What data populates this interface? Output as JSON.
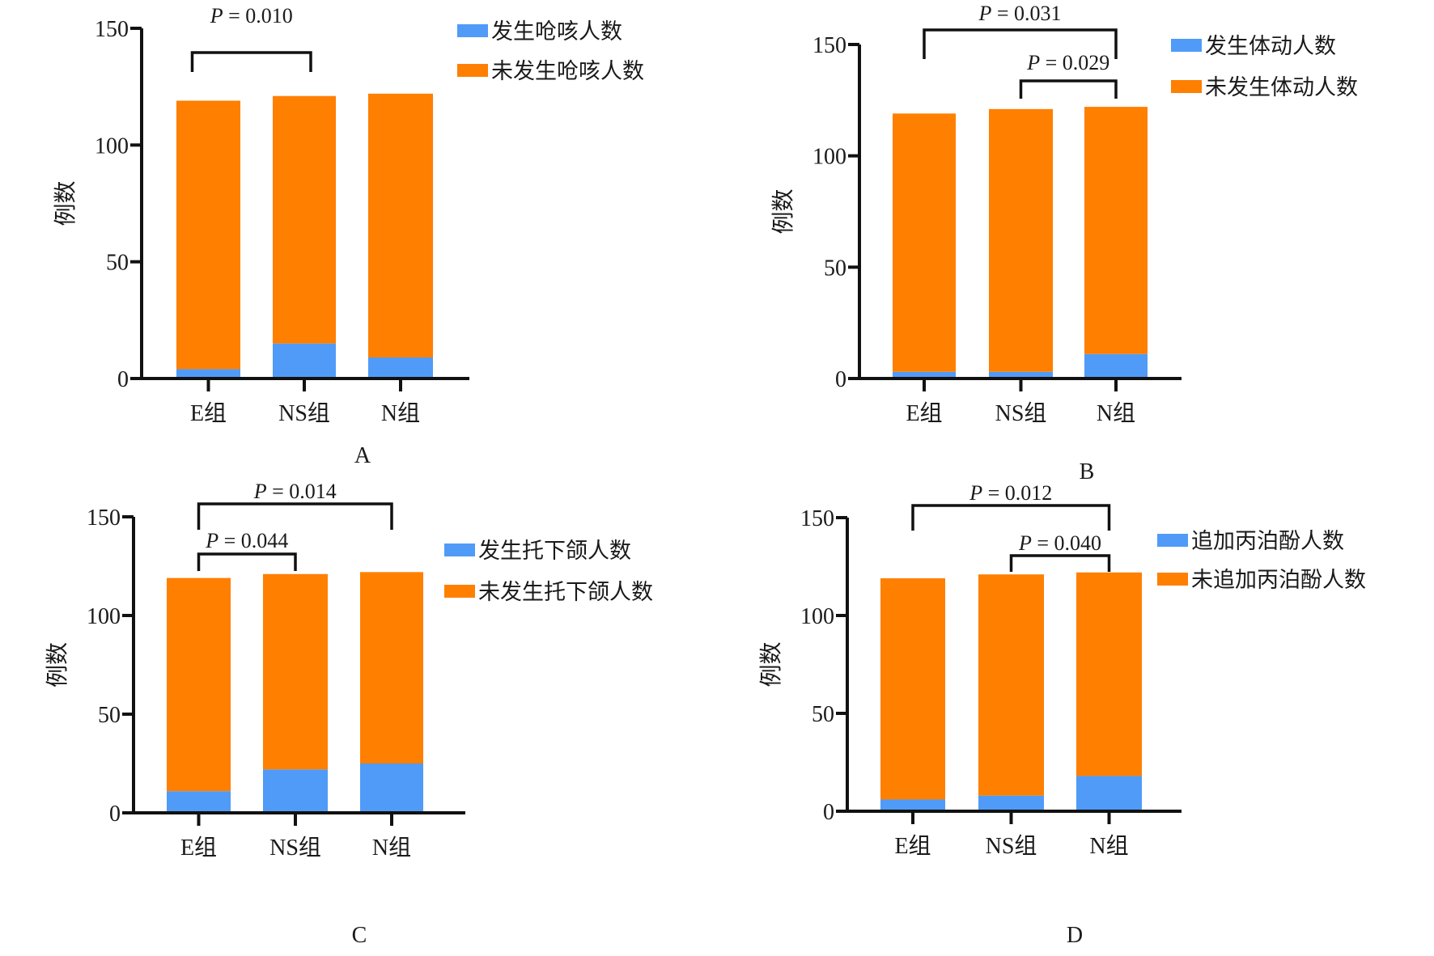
{
  "colors": {
    "occurred": "#4f9bf7",
    "not_occurred": "#ff7f00",
    "axis": "#111111"
  },
  "chart_data": [
    {
      "type": "bar",
      "stacked": true,
      "panel_label": "A",
      "title": "",
      "xlabel": "",
      "ylabel": "例数",
      "ylim": [
        0,
        150
      ],
      "yticks": [
        0,
        50,
        100,
        150
      ],
      "categories": [
        "E组",
        "NS组",
        "N组"
      ],
      "series": [
        {
          "name": "发生呛咳人数",
          "values": [
            4,
            15,
            9
          ]
        },
        {
          "name": "未发生呛咳人数",
          "values": [
            115,
            106,
            113
          ]
        }
      ],
      "totals": [
        119,
        121,
        122
      ],
      "legend": "top-right",
      "annotations": [
        {
          "text_p": "P",
          "text_value": " = 0.010",
          "from": "E组",
          "to": "NS组",
          "level": 1
        }
      ]
    },
    {
      "type": "bar",
      "stacked": true,
      "panel_label": "B",
      "title": "",
      "xlabel": "",
      "ylabel": "例数",
      "ylim": [
        0,
        150
      ],
      "yticks": [
        0,
        50,
        100,
        150
      ],
      "categories": [
        "E组",
        "NS组",
        "N组"
      ],
      "series": [
        {
          "name": "发生体动人数",
          "values": [
            3,
            3,
            11
          ]
        },
        {
          "name": "未发生体动人数",
          "values": [
            116,
            118,
            111
          ]
        }
      ],
      "totals": [
        119,
        121,
        122
      ],
      "legend": "top-right",
      "annotations": [
        {
          "text_p": "P",
          "text_value": " = 0.031",
          "from": "E组",
          "to": "N组",
          "level": 2
        },
        {
          "text_p": "P",
          "text_value": " = 0.029",
          "from": "NS组",
          "to": "N组",
          "level": 1
        }
      ]
    },
    {
      "type": "bar",
      "stacked": true,
      "panel_label": "C",
      "title": "",
      "xlabel": "",
      "ylabel": "例数",
      "ylim": [
        0,
        150
      ],
      "yticks": [
        0,
        50,
        100,
        150
      ],
      "categories": [
        "E组",
        "NS组",
        "N组"
      ],
      "series": [
        {
          "name": "发生托下颌人数",
          "values": [
            11,
            22,
            25
          ]
        },
        {
          "name": "未发生托下颌人数",
          "values": [
            108,
            99,
            97
          ]
        }
      ],
      "totals": [
        119,
        121,
        122
      ],
      "legend": "right",
      "annotations": [
        {
          "text_p": "P",
          "text_value": " = 0.014",
          "from": "E组",
          "to": "N组",
          "level": 2
        },
        {
          "text_p": "P",
          "text_value": " = 0.044",
          "from": "E组",
          "to": "NS组",
          "level": 1
        }
      ]
    },
    {
      "type": "bar",
      "stacked": true,
      "panel_label": "D",
      "title": "",
      "xlabel": "",
      "ylabel": "例数",
      "ylim": [
        0,
        150
      ],
      "yticks": [
        0,
        50,
        100,
        150
      ],
      "categories": [
        "E组",
        "NS组",
        "N组"
      ],
      "series": [
        {
          "name": "追加丙泊酚人数",
          "values": [
            6,
            8,
            18
          ]
        },
        {
          "name": "未追加丙泊酚人数",
          "values": [
            113,
            113,
            104
          ]
        }
      ],
      "totals": [
        119,
        121,
        122
      ],
      "legend": "right",
      "annotations": [
        {
          "text_p": "P",
          "text_value": " = 0.012",
          "from": "E组",
          "to": "N组",
          "level": 2
        },
        {
          "text_p": "P",
          "text_value": " = 0.040",
          "from": "NS组",
          "to": "N组",
          "level": 1
        }
      ]
    }
  ]
}
